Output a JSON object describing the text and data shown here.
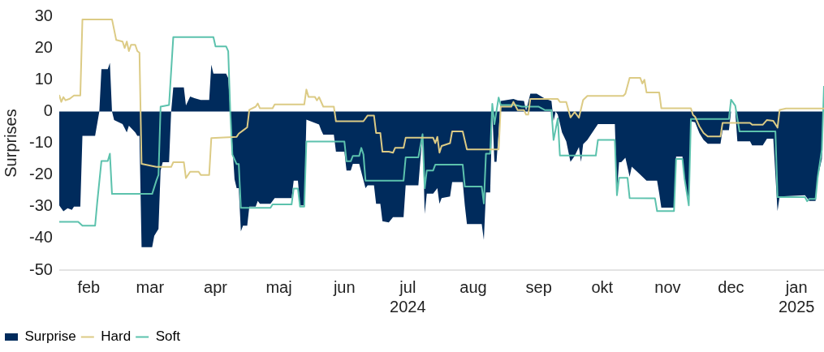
{
  "chart_data": {
    "type": "line",
    "ylabel": "Surprises",
    "legend": "bottom left",
    "grid": false,
    "marker": "none",
    "line_style": "solid",
    "xlim": [
      "2024-02-01",
      "2025-01-28"
    ],
    "xticks": [
      {
        "value": "2024-02-15",
        "label": "feb"
      },
      {
        "value": "2024-03-15",
        "label": "mar"
      },
      {
        "value": "2024-04-15",
        "label": "apr"
      },
      {
        "value": "2024-05-15",
        "label": "maj"
      },
      {
        "value": "2024-06-15",
        "label": "jun"
      },
      {
        "value": "2024-07-15",
        "label": "jul\n2024"
      },
      {
        "value": "2024-08-15",
        "label": "aug"
      },
      {
        "value": "2024-09-15",
        "label": "sep"
      },
      {
        "value": "2024-10-15",
        "label": "okt"
      },
      {
        "value": "2024-11-15",
        "label": "nov"
      },
      {
        "value": "2024-12-15",
        "label": "dec"
      },
      {
        "value": "2025-01-15",
        "label": "jan\n2025"
      }
    ],
    "ylim": [
      -50,
      30
    ],
    "yticks": [
      -50,
      -40,
      -30,
      -20,
      -10,
      0,
      10,
      20,
      30
    ],
    "series": [
      {
        "name": "Surprise",
        "type": "area",
        "color": "#002b5c",
        "x": [
          "2024-02-01",
          "2024-02-03",
          "2024-02-05",
          "2024-02-07",
          "2024-02-08",
          "2024-02-11",
          "2024-02-12",
          "2024-02-18",
          "2024-02-20",
          "2024-02-21",
          "2024-02-24",
          "2024-02-25",
          "2024-02-26",
          "2024-02-27",
          "2024-03-02",
          "2024-03-04",
          "2024-03-05",
          "2024-03-08",
          "2024-03-09",
          "2024-03-10",
          "2024-03-11",
          "2024-03-16",
          "2024-03-17",
          "2024-03-19",
          "2024-03-20",
          "2024-03-21",
          "2024-03-24",
          "2024-03-25",
          "2024-03-26",
          "2024-03-31",
          "2024-04-01",
          "2024-04-03",
          "2024-04-05",
          "2024-04-08",
          "2024-04-12",
          "2024-04-13",
          "2024-04-14",
          "2024-04-20",
          "2024-04-21",
          "2024-04-22",
          "2024-04-24",
          "2024-04-25",
          "2024-04-26",
          "2024-04-27",
          "2024-04-28",
          "2024-04-30",
          "2024-05-01",
          "2024-05-04",
          "2024-05-05",
          "2024-05-06",
          "2024-05-11",
          "2024-05-13",
          "2024-05-21",
          "2024-05-22",
          "2024-05-24",
          "2024-05-25",
          "2024-05-27",
          "2024-05-28",
          "2024-06-03",
          "2024-06-04",
          "2024-06-05",
          "2024-06-10",
          "2024-06-11",
          "2024-06-15",
          "2024-06-16",
          "2024-06-18",
          "2024-06-19",
          "2024-06-22",
          "2024-06-25",
          "2024-06-26",
          "2024-06-29",
          "2024-06-30",
          "2024-07-02",
          "2024-07-03",
          "2024-07-06",
          "2024-07-08",
          "2024-07-13",
          "2024-07-14",
          "2024-07-20",
          "2024-07-22",
          "2024-07-23",
          "2024-07-24",
          "2024-07-27",
          "2024-07-29",
          "2024-07-30",
          "2024-07-31",
          "2024-08-04",
          "2024-08-05",
          "2024-08-10",
          "2024-08-11",
          "2024-08-12",
          "2024-08-19",
          "2024-08-20",
          "2024-08-21",
          "2024-08-23",
          "2024-08-24",
          "2024-08-25",
          "2024-08-26",
          "2024-08-28",
          "2024-09-03",
          "2024-09-05",
          "2024-09-08",
          "2024-09-09",
          "2024-09-11",
          "2024-09-14",
          "2024-09-18",
          "2024-09-21",
          "2024-09-22",
          "2024-09-23",
          "2024-09-24",
          "2024-09-26",
          "2024-09-28",
          "2024-09-30",
          "2024-10-02",
          "2024-10-04",
          "2024-10-05",
          "2024-10-06",
          "2024-10-08",
          "2024-10-13",
          "2024-10-21",
          "2024-10-22",
          "2024-10-23",
          "2024-10-24",
          "2024-10-26",
          "2024-10-28",
          "2024-10-29",
          "2024-11-02",
          "2024-11-05",
          "2024-11-10",
          "2024-11-11",
          "2024-11-12",
          "2024-11-18",
          "2024-11-19",
          "2024-11-22",
          "2024-11-23",
          "2024-11-25",
          "2024-11-26",
          "2024-11-28",
          "2024-11-30",
          "2024-12-02",
          "2024-12-04",
          "2024-12-10",
          "2024-12-11",
          "2024-12-14",
          "2024-12-15",
          "2024-12-17",
          "2024-12-18",
          "2024-12-24",
          "2024-12-25",
          "2024-12-30",
          "2025-01-01",
          "2025-01-04",
          "2025-01-06",
          "2025-01-07",
          "2025-01-19",
          "2025-01-21",
          "2025-01-24",
          "2025-01-25",
          "2025-01-27",
          "2025-01-28"
        ],
        "values": [
          -29.6,
          -31.5,
          -30.5,
          -31,
          -30,
          -30,
          -7.7,
          -7.7,
          0,
          13.3,
          13.3,
          15.3,
          0,
          -2.7,
          -4,
          -6.6,
          -4.5,
          -6.6,
          -7.7,
          -7.7,
          -42.8,
          -42.8,
          -39.2,
          -37,
          -18.6,
          -16,
          -16,
          0,
          7.6,
          7.6,
          1.9,
          4.7,
          4.2,
          3.6,
          3.6,
          14.7,
          11.9,
          11.9,
          10.5,
          0,
          -21.4,
          -24.2,
          -24.2,
          -37.8,
          -36,
          -36,
          -30,
          -30,
          -28.2,
          -29.1,
          -29.1,
          -27.3,
          -27.3,
          -21.8,
          -21.8,
          -29.6,
          -29.6,
          -2.6,
          -4.1,
          -5.9,
          -7.3,
          -7.3,
          -12.7,
          -12.7,
          -18.6,
          -18.6,
          -16.5,
          -16.5,
          -24.2,
          -23.3,
          -23.3,
          -29.1,
          -29.1,
          -34.6,
          -35,
          -33.3,
          -33.3,
          -23.3,
          -23.3,
          -6.8,
          -32.3,
          -25.9,
          -25.9,
          -24.2,
          -29.1,
          -27.3,
          -26.8,
          -22.3,
          -22.3,
          -29.6,
          -35.5,
          -35.5,
          -40.5,
          -25.5,
          -25.5,
          0,
          -15.9,
          -15.9,
          3.3,
          3.9,
          3.5,
          3.3,
          0.2,
          5.6,
          5.6,
          4,
          3.3,
          -3,
          0,
          -1,
          -6.6,
          -9.4,
          -15.9,
          -14,
          -11.2,
          -15.9,
          -10.3,
          -9,
          -4,
          -4,
          -25,
          -16,
          -16,
          -14.6,
          -20.6,
          -17.4,
          -19.9,
          -21.8,
          -21.8,
          -25.8,
          -30.3,
          -30.3,
          -14.2,
          -14.2,
          -21.4,
          -29.6,
          -3.1,
          -3.4,
          -6.8,
          -9,
          -10.2,
          -10.2,
          -5.9,
          -5.9,
          0,
          0,
          -9.4,
          -9.4,
          -10.7,
          -10.7,
          -8.6,
          -8.6,
          -31.4,
          -26.8,
          -26.4,
          -28.2,
          -28.2,
          -20.8,
          -15,
          8
        ]
      },
      {
        "name": "Hard",
        "color": "#dccb85",
        "x": [
          "2024-02-01",
          "2024-02-02",
          "2024-02-03",
          "2024-02-04",
          "2024-02-06",
          "2024-02-08",
          "2024-02-11",
          "2024-02-12",
          "2024-02-26",
          "2024-02-28",
          "2024-03-02",
          "2024-03-03",
          "2024-03-04",
          "2024-03-05",
          "2024-03-06",
          "2024-03-08",
          "2024-03-09",
          "2024-03-10",
          "2024-03-11",
          "2024-03-18",
          "2024-03-25",
          "2024-03-26",
          "2024-03-31",
          "2024-04-01",
          "2024-04-03",
          "2024-04-07",
          "2024-04-08",
          "2024-04-12",
          "2024-04-13",
          "2024-04-25",
          "2024-04-26",
          "2024-04-28",
          "2024-04-30",
          "2024-05-01",
          "2024-05-04",
          "2024-05-05",
          "2024-05-06",
          "2024-05-12",
          "2024-05-13",
          "2024-05-27",
          "2024-05-28",
          "2024-05-29",
          "2024-06-01",
          "2024-06-02",
          "2024-06-03",
          "2024-06-05",
          "2024-06-10",
          "2024-06-11",
          "2024-06-24",
          "2024-06-26",
          "2024-06-29",
          "2024-06-30",
          "2024-07-02",
          "2024-07-03",
          "2024-07-06",
          "2024-07-08",
          "2024-07-09",
          "2024-07-13",
          "2024-07-14",
          "2024-07-27",
          "2024-07-28",
          "2024-07-29",
          "2024-07-30",
          "2024-07-31",
          "2024-08-04",
          "2024-08-05",
          "2024-08-10",
          "2024-08-12",
          "2024-08-27",
          "2024-08-28",
          "2024-09-02",
          "2024-09-03",
          "2024-09-05",
          "2024-09-08",
          "2024-09-09",
          "2024-09-10",
          "2024-09-11",
          "2024-09-24",
          "2024-09-25",
          "2024-09-28",
          "2024-09-30",
          "2024-10-02",
          "2024-10-04",
          "2024-10-06",
          "2024-10-08",
          "2024-10-25",
          "2024-10-26",
          "2024-10-28",
          "2024-11-02",
          "2024-11-03",
          "2024-11-04",
          "2024-11-05",
          "2024-11-11",
          "2024-11-12",
          "2024-11-26",
          "2024-11-27",
          "2024-11-28",
          "2024-11-30",
          "2024-12-02",
          "2024-12-04",
          "2024-12-10",
          "2024-12-11",
          "2024-12-24",
          "2024-12-25",
          "2024-12-30",
          "2025-01-01",
          "2025-01-04",
          "2025-01-06",
          "2025-01-07",
          "2025-01-10",
          "2025-01-28"
        ],
        "values": [
          5.2,
          3,
          4.5,
          3.5,
          4,
          5,
          5,
          29,
          29,
          22.5,
          22,
          20,
          22,
          19,
          21,
          21,
          19,
          18.5,
          -16.5,
          -17.5,
          -17.5,
          -16,
          -16,
          -21,
          -19,
          -19,
          -20,
          -20,
          -8.4,
          -8,
          -7,
          -6,
          -5,
          0.5,
          1.5,
          2.5,
          1,
          1,
          2.2,
          2.2,
          6.9,
          4.6,
          4.6,
          3.5,
          4.5,
          1.5,
          1.5,
          -3.1,
          -3.1,
          -1.3,
          -1.3,
          -6.8,
          -6.8,
          -12.7,
          -12.7,
          -13,
          -11.5,
          -11.5,
          -8.3,
          -8.3,
          -10,
          -8,
          -13,
          -10.9,
          -10,
          -6.3,
          -6.3,
          -12,
          -12,
          1.5,
          1.5,
          3,
          0.4,
          0.4,
          -1,
          -1,
          3.9,
          3.9,
          3,
          3,
          -1.9,
          -0.2,
          -2,
          3.6,
          4.9,
          4.9,
          5.6,
          10.6,
          10.6,
          8.8,
          10,
          6,
          6,
          1,
          1,
          -1.1,
          -1.7,
          -4.7,
          -6.8,
          -7.9,
          -7.9,
          -3.6,
          -3.6,
          -4.2,
          -4.2,
          -2.7,
          -3,
          -5.1,
          0.5,
          0.9,
          0.9
        ]
      },
      {
        "name": "Soft",
        "color": "#5cc2ad",
        "x": [
          "2024-02-01",
          "2024-02-10",
          "2024-02-12",
          "2024-02-18",
          "2024-02-19",
          "2024-02-21",
          "2024-02-24",
          "2024-02-25",
          "2024-02-26",
          "2024-03-16",
          "2024-03-18",
          "2024-03-19",
          "2024-03-20",
          "2024-03-24",
          "2024-03-26",
          "2024-04-14",
          "2024-04-15",
          "2024-04-20",
          "2024-04-21",
          "2024-04-22",
          "2024-04-23",
          "2024-04-25",
          "2024-04-26",
          "2024-04-27",
          "2024-05-11",
          "2024-05-12",
          "2024-05-21",
          "2024-05-22",
          "2024-05-24",
          "2024-05-25",
          "2024-05-27",
          "2024-05-28",
          "2024-06-15",
          "2024-06-16",
          "2024-06-18",
          "2024-06-19",
          "2024-06-22",
          "2024-06-23",
          "2024-06-24",
          "2024-06-25",
          "2024-07-13",
          "2024-07-14",
          "2024-07-20",
          "2024-07-22",
          "2024-07-23",
          "2024-07-24",
          "2024-07-27",
          "2024-07-28",
          "2024-08-10",
          "2024-08-11",
          "2024-08-19",
          "2024-08-20",
          "2024-08-21",
          "2024-08-23",
          "2024-08-24",
          "2024-08-25",
          "2024-08-27",
          "2024-08-28",
          "2024-09-04",
          "2024-09-07",
          "2024-09-15",
          "2024-09-18",
          "2024-09-21",
          "2024-09-22",
          "2024-09-24",
          "2024-09-25",
          "2024-10-12",
          "2024-10-13",
          "2024-10-21",
          "2024-10-22",
          "2024-10-23",
          "2024-10-27",
          "2024-10-28",
          "2024-11-09",
          "2024-11-10",
          "2024-11-18",
          "2024-11-19",
          "2024-11-22",
          "2024-11-23",
          "2024-11-25",
          "2024-11-26",
          "2024-12-14",
          "2024-12-15",
          "2024-12-17",
          "2024-12-19",
          "2025-01-05",
          "2025-01-06",
          "2025-01-19",
          "2025-01-20",
          "2025-01-21",
          "2025-01-24",
          "2025-01-25",
          "2025-01-27",
          "2025-01-28"
        ],
        "values": [
          -34.8,
          -34.8,
          -36,
          -36,
          -28.7,
          -15.6,
          -15.6,
          -13.3,
          -26,
          -26,
          -21.8,
          -20,
          1.5,
          2,
          23.4,
          23.4,
          20.5,
          20.5,
          19,
          -0.3,
          -13.6,
          -16.6,
          -16.6,
          -30.4,
          -30.4,
          -29.3,
          -29.3,
          -24.3,
          -24.3,
          -30,
          -30,
          -9.5,
          -9.5,
          -15.7,
          -15.7,
          -14,
          -14,
          -11.5,
          -13.5,
          -21.8,
          -21.8,
          -14.5,
          -14.5,
          -7.2,
          -24.2,
          -18.6,
          -18.6,
          -16.8,
          -16.8,
          -23.7,
          -23.7,
          -29,
          -13.3,
          -13.3,
          2.4,
          -4,
          4.4,
          2,
          2,
          1.5,
          1.5,
          0.4,
          0.4,
          -9,
          -2.2,
          -13.9,
          -13.9,
          -9,
          -9,
          -26.4,
          -20.9,
          -20.9,
          -27.3,
          -27.4,
          -31.4,
          -31.4,
          -15,
          -15,
          -21.3,
          -29.6,
          -2.4,
          -2.4,
          3.7,
          1.8,
          -6.3,
          -6.3,
          -27,
          -27,
          -28.3,
          -27.6,
          -27.6,
          -20.8,
          -12,
          8
        ]
      }
    ]
  }
}
